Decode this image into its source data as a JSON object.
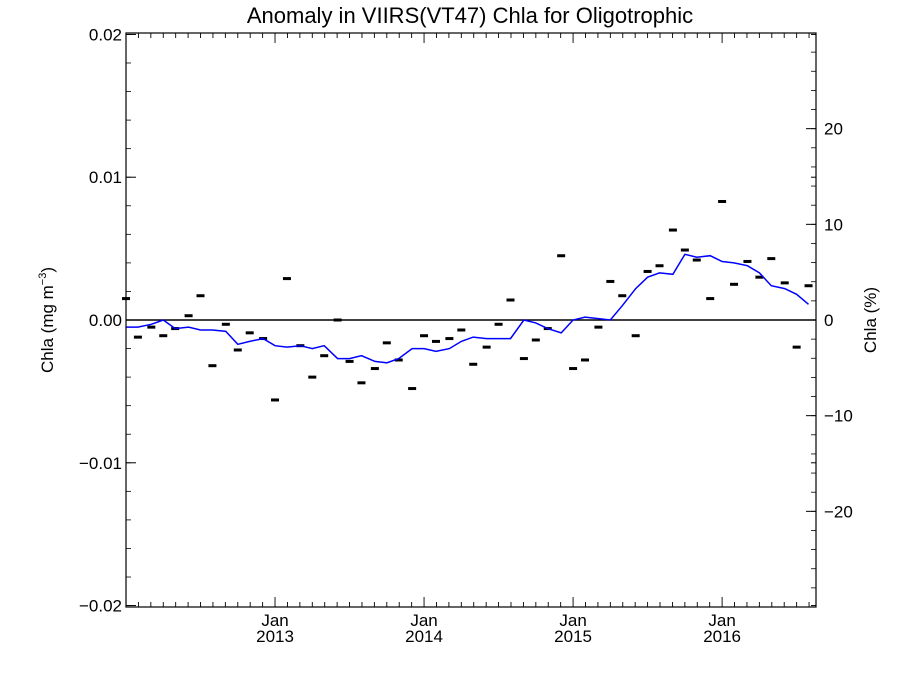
{
  "chart_data": {
    "type": "line",
    "title": "Anomaly in VIIRS(VT47) Chla for Oligotrophic",
    "ylabel_left": {
      "main": "Chla (mg m",
      "sup": "−3",
      "close": ")"
    },
    "ylabel_right": "Chla (%)",
    "x_ticks": [
      {
        "month": "Jan",
        "year": "2013",
        "x": 2013.0
      },
      {
        "month": "Jan",
        "year": "2014",
        "x": 2014.0
      },
      {
        "month": "Jan",
        "year": "2015",
        "x": 2015.0
      },
      {
        "month": "Jan",
        "year": "2016",
        "x": 2016.0
      }
    ],
    "xlim": [
      2012.0,
      2016.63
    ],
    "ylim_left": [
      -0.0201,
      0.0201
    ],
    "ylim_right": [
      -30,
      30
    ],
    "y_ticks_left": [
      {
        "v": 0.02,
        "label": "0.02"
      },
      {
        "v": 0.01,
        "label": "0.01"
      },
      {
        "v": 0.0,
        "label": "0.00"
      },
      {
        "v": -0.01,
        "label": "−0.01"
      },
      {
        "v": -0.02,
        "label": "−0.02"
      }
    ],
    "y_ticks_right": [
      {
        "v": 20,
        "label": "20"
      },
      {
        "v": 10,
        "label": "10"
      },
      {
        "v": 0,
        "label": "0"
      },
      {
        "v": -10,
        "label": "−10"
      },
      {
        "v": -20,
        "label": "−20"
      }
    ],
    "zero_line": true,
    "series": [
      {
        "style": "markers",
        "color": "#000000",
        "points": [
          [
            2012.0,
            0.0015
          ],
          [
            2012.08,
            -0.0012
          ],
          [
            2012.17,
            -0.0005
          ],
          [
            2012.25,
            -0.0011
          ],
          [
            2012.33,
            -0.0006
          ],
          [
            2012.42,
            0.0003
          ],
          [
            2012.5,
            0.0017
          ],
          [
            2012.58,
            -0.0032
          ],
          [
            2012.67,
            -0.0003
          ],
          [
            2012.75,
            -0.0021
          ],
          [
            2012.83,
            -0.0009
          ],
          [
            2012.92,
            -0.0013
          ],
          [
            2013.0,
            -0.0056
          ],
          [
            2013.08,
            0.0029
          ],
          [
            2013.17,
            -0.0018
          ],
          [
            2013.25,
            -0.004
          ],
          [
            2013.33,
            -0.0025
          ],
          [
            2013.42,
            0.0
          ],
          [
            2013.5,
            -0.0029
          ],
          [
            2013.58,
            -0.0044
          ],
          [
            2013.67,
            -0.0034
          ],
          [
            2013.75,
            -0.0016
          ],
          [
            2013.83,
            -0.0028
          ],
          [
            2013.92,
            -0.0048
          ],
          [
            2014.0,
            -0.0011
          ],
          [
            2014.08,
            -0.0015
          ],
          [
            2014.17,
            -0.0013
          ],
          [
            2014.25,
            -0.0007
          ],
          [
            2014.33,
            -0.0031
          ],
          [
            2014.42,
            -0.0019
          ],
          [
            2014.5,
            -0.0003
          ],
          [
            2014.58,
            0.0014
          ],
          [
            2014.67,
            -0.0027
          ],
          [
            2014.75,
            -0.0014
          ],
          [
            2014.83,
            -0.0006
          ],
          [
            2014.92,
            0.0045
          ],
          [
            2015.0,
            -0.0034
          ],
          [
            2015.08,
            -0.0028
          ],
          [
            2015.17,
            -0.0005
          ],
          [
            2015.25,
            0.0027
          ],
          [
            2015.33,
            0.0017
          ],
          [
            2015.42,
            -0.0011
          ],
          [
            2015.5,
            0.0034
          ],
          [
            2015.58,
            0.0038
          ],
          [
            2015.67,
            0.0063
          ],
          [
            2015.75,
            0.0049
          ],
          [
            2015.83,
            0.0042
          ],
          [
            2015.92,
            0.0015
          ],
          [
            2016.0,
            0.0083
          ],
          [
            2016.08,
            0.0025
          ],
          [
            2016.17,
            0.0041
          ],
          [
            2016.25,
            0.003
          ],
          [
            2016.33,
            0.0043
          ],
          [
            2016.42,
            0.0026
          ],
          [
            2016.5,
            -0.0019
          ],
          [
            2016.58,
            0.0024
          ]
        ]
      },
      {
        "style": "line",
        "color": "#0000ff",
        "points": [
          [
            2012.0,
            -0.0005
          ],
          [
            2012.08,
            -0.0005
          ],
          [
            2012.17,
            -0.0003
          ],
          [
            2012.25,
            0.0
          ],
          [
            2012.33,
            -0.0006
          ],
          [
            2012.42,
            -0.0005
          ],
          [
            2012.5,
            -0.0007
          ],
          [
            2012.58,
            -0.0007
          ],
          [
            2012.67,
            -0.0008
          ],
          [
            2012.75,
            -0.0017
          ],
          [
            2012.83,
            -0.0015
          ],
          [
            2012.92,
            -0.0013
          ],
          [
            2013.0,
            -0.0018
          ],
          [
            2013.08,
            -0.0019
          ],
          [
            2013.17,
            -0.0018
          ],
          [
            2013.25,
            -0.002
          ],
          [
            2013.33,
            -0.0018
          ],
          [
            2013.42,
            -0.0027
          ],
          [
            2013.5,
            -0.0027
          ],
          [
            2013.58,
            -0.0025
          ],
          [
            2013.67,
            -0.0029
          ],
          [
            2013.75,
            -0.003
          ],
          [
            2013.83,
            -0.0027
          ],
          [
            2013.92,
            -0.002
          ],
          [
            2014.0,
            -0.002
          ],
          [
            2014.08,
            -0.0022
          ],
          [
            2014.17,
            -0.002
          ],
          [
            2014.25,
            -0.0015
          ],
          [
            2014.33,
            -0.0012
          ],
          [
            2014.42,
            -0.0013
          ],
          [
            2014.5,
            -0.0013
          ],
          [
            2014.58,
            -0.0013
          ],
          [
            2014.67,
            0.0
          ],
          [
            2014.75,
            -0.0002
          ],
          [
            2014.83,
            -0.0006
          ],
          [
            2014.92,
            -0.0009
          ],
          [
            2015.0,
            0.0
          ],
          [
            2015.08,
            0.0002
          ],
          [
            2015.17,
            0.0001
          ],
          [
            2015.25,
            0.0
          ],
          [
            2015.33,
            0.001
          ],
          [
            2015.42,
            0.0022
          ],
          [
            2015.5,
            0.003
          ],
          [
            2015.58,
            0.0033
          ],
          [
            2015.67,
            0.0032
          ],
          [
            2015.75,
            0.0046
          ],
          [
            2015.83,
            0.0044
          ],
          [
            2015.92,
            0.0045
          ],
          [
            2016.0,
            0.0041
          ],
          [
            2016.08,
            0.004
          ],
          [
            2016.17,
            0.0038
          ],
          [
            2016.25,
            0.0033
          ],
          [
            2016.33,
            0.0024
          ],
          [
            2016.42,
            0.0022
          ],
          [
            2016.5,
            0.0018
          ],
          [
            2016.58,
            0.0011
          ]
        ]
      }
    ]
  }
}
